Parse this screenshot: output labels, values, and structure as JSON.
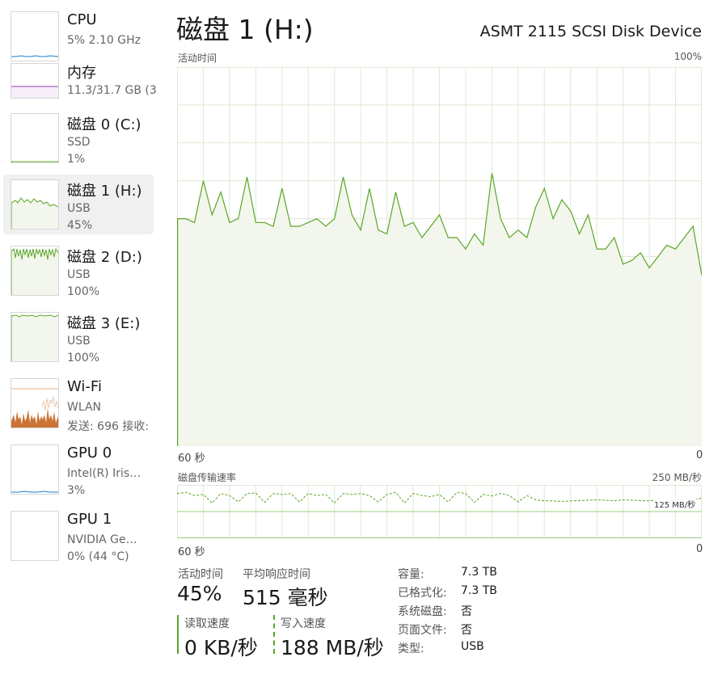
{
  "sidebar": {
    "items": [
      {
        "name": "CPU",
        "sub1": "5% 2.10 GHz",
        "sub2": ""
      },
      {
        "name": "内存",
        "sub1": "11.3/31.7 GB (3",
        "sub2": ""
      },
      {
        "name": "磁盘 0 (C:)",
        "sub1": "SSD",
        "sub2": "1%"
      },
      {
        "name": "磁盘 1 (H:)",
        "sub1": "USB",
        "sub2": "45%"
      },
      {
        "name": "磁盘 2 (D:)",
        "sub1": "USB",
        "sub2": "100%"
      },
      {
        "name": "磁盘 3 (E:)",
        "sub1": "USB",
        "sub2": "100%"
      },
      {
        "name": "Wi-Fi",
        "sub1": "WLAN",
        "sub2": "发送: 696 接收:"
      },
      {
        "name": "GPU 0",
        "sub1": "Intel(R) Iris…",
        "sub2": "3%"
      },
      {
        "name": "GPU 1",
        "sub1": "NVIDIA Ge…",
        "sub2": "0% (44 °C)"
      }
    ]
  },
  "header": {
    "title": "磁盘 1 (H:)",
    "device": "ASMT 2115 SCSI Disk Device"
  },
  "activity": {
    "label": "活动时间",
    "max_label": "100%",
    "x_left": "60 秒",
    "x_right": "0"
  },
  "transfer": {
    "label": "磁盘传输速率",
    "max_label": "250 MB/秒",
    "mid_label": "125 MB/秒",
    "x_left": "60 秒",
    "x_right": "0"
  },
  "stats": {
    "active_label": "活动时间",
    "active_value": "45%",
    "response_label": "平均响应时间",
    "response_value": "515 毫秒",
    "read_label": "读取速度",
    "read_value": "0 KB/秒",
    "write_label": "写入速度",
    "write_value": "188 MB/秒"
  },
  "info": [
    {
      "key": "容量:",
      "value": "7.3 TB"
    },
    {
      "key": "已格式化:",
      "value": "7.3 TB"
    },
    {
      "key": "系统磁盘:",
      "value": "否"
    },
    {
      "key": "页面文件:",
      "value": "否"
    },
    {
      "key": "类型:",
      "value": "USB"
    }
  ],
  "colors": {
    "disk_line": "#5aa628",
    "disk_fill": "#f3f6ec",
    "grid": "#dfe9d5",
    "cpu": "#1b7fc7",
    "memory": "#8e3fa8",
    "wifi": "#c25a12",
    "gpu": "#1b7fc7"
  },
  "chart_data": [
    {
      "type": "area",
      "title": "活动时间",
      "ylabel": "%",
      "ylim": [
        0,
        100
      ],
      "x": [
        60,
        59,
        58,
        57,
        56,
        55,
        54,
        53,
        52,
        51,
        50,
        49,
        48,
        47,
        46,
        45,
        44,
        43,
        42,
        41,
        40,
        39,
        38,
        37,
        36,
        35,
        34,
        33,
        32,
        31,
        30,
        29,
        28,
        27,
        26,
        25,
        24,
        23,
        22,
        21,
        20,
        19,
        18,
        17,
        16,
        15,
        14,
        13,
        12,
        11,
        10,
        9,
        8,
        7,
        6,
        5,
        4,
        3,
        2,
        1,
        0
      ],
      "values": [
        60,
        60,
        59,
        70,
        61,
        67,
        59,
        60,
        71,
        59,
        59,
        58,
        68,
        58,
        58,
        59,
        60,
        58,
        60,
        71,
        61,
        57,
        68,
        57,
        56,
        67,
        58,
        59,
        55,
        58,
        61,
        55,
        55,
        52,
        56,
        53,
        72,
        60,
        55,
        57,
        55,
        63,
        68,
        60,
        65,
        62,
        56,
        61,
        52,
        52,
        55,
        48,
        49,
        51,
        47,
        50,
        53,
        52,
        55,
        58,
        45
      ],
      "grid": true
    },
    {
      "type": "line",
      "title": "磁盘传输速率",
      "ylabel": "MB/秒",
      "ylim": [
        0,
        250
      ],
      "x": [
        60,
        59,
        58,
        57,
        56,
        55,
        54,
        53,
        52,
        51,
        50,
        49,
        48,
        47,
        46,
        45,
        44,
        43,
        42,
        41,
        40,
        39,
        38,
        37,
        36,
        35,
        34,
        33,
        32,
        31,
        30,
        29,
        28,
        27,
        26,
        25,
        24,
        23,
        22,
        21,
        20,
        19,
        18,
        17,
        16,
        15,
        14,
        13,
        12,
        11,
        10,
        9,
        8,
        7,
        6,
        5,
        4,
        3,
        2,
        1,
        0
      ],
      "series": [
        {
          "values": [
            210,
            215,
            200,
            205,
            165,
            210,
            200,
            170,
            210,
            212,
            168,
            210,
            205,
            210,
            170,
            210,
            200,
            205,
            165,
            210,
            205,
            210,
            200,
            170,
            205,
            215,
            165,
            210,
            200,
            195,
            205,
            170,
            215,
            210,
            168,
            205,
            198,
            210,
            200,
            170,
            200,
            180,
            175,
            175,
            172,
            175,
            176,
            178,
            180,
            178,
            175,
            180,
            178,
            176,
            175,
            180,
            178,
            182,
            176,
            180,
            188
          ]
        },
        {
          "values": [
            0,
            0,
            0,
            0,
            0,
            0,
            0,
            0,
            0,
            0,
            0,
            0,
            0,
            0,
            0,
            0,
            0,
            0,
            0,
            0,
            0,
            0,
            0,
            0,
            0,
            0,
            0,
            0,
            0,
            0,
            0,
            0,
            0,
            0,
            0,
            0,
            0,
            0,
            0,
            0,
            0,
            0,
            0,
            0,
            0,
            0,
            0,
            0,
            0,
            0,
            0,
            0,
            0,
            0,
            0,
            0,
            0,
            0,
            0,
            0,
            0
          ]
        }
      ],
      "grid": true
    }
  ]
}
